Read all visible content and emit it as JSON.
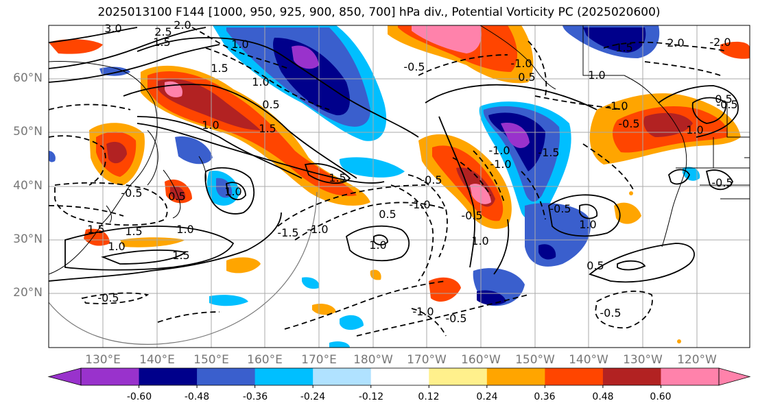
{
  "title": "2025013100 F144 [1000, 950, 925, 900, 850, 700] hPa div., Potential Vorticity PC (2025020600)",
  "lat_labels": [
    "60°N",
    "50°N",
    "40°N",
    "30°N",
    "20°N"
  ],
  "lon_labels": [
    "130°E",
    "140°E",
    "150°E",
    "160°E",
    "170°E",
    "180°W",
    "170°W",
    "160°W",
    "150°W",
    "140°W",
    "130°W",
    "120°W"
  ],
  "colorbar": {
    "colors": [
      "#9932cc",
      "#00008b",
      "#3a5fcd",
      "#00bfff",
      "#b0e2ff",
      "#ffffff",
      "#fff08c",
      "#ffa500",
      "#ff4500",
      "#b22222",
      "#ff82ab"
    ],
    "tick_labels": [
      "-0.60",
      "-0.48",
      "-0.36",
      "-0.24",
      "-0.12",
      "0.12",
      "0.24",
      "0.36",
      "0.48",
      "0.60"
    ]
  },
  "contour_labels": [
    "3.0",
    "2.5",
    "1.5",
    "2.0",
    "1.0",
    "1.0",
    "1.5",
    "0.5",
    "1.5",
    "1.0",
    "-0.5",
    "0.5",
    "1.0",
    "1.5",
    "1.5",
    "-0.5",
    "1.0",
    "-1.0",
    "-1.5",
    "1.5",
    "1.0",
    "1.5",
    "-0.5",
    "-0.5",
    "-1.0",
    "0.5",
    "1.0",
    "-1.0",
    "-0.5",
    "1.0",
    "1.0",
    "-0.5",
    "-0.5",
    "-1.0",
    "-1.5",
    "-1.0",
    "0.5",
    "-0.5",
    "-1.0",
    "-0.5",
    "0.5",
    "1.0",
    "-0.5",
    "1.5",
    "-0.5",
    "2.0",
    "-2.0",
    "1.0",
    "0.5",
    "-1.0"
  ]
}
